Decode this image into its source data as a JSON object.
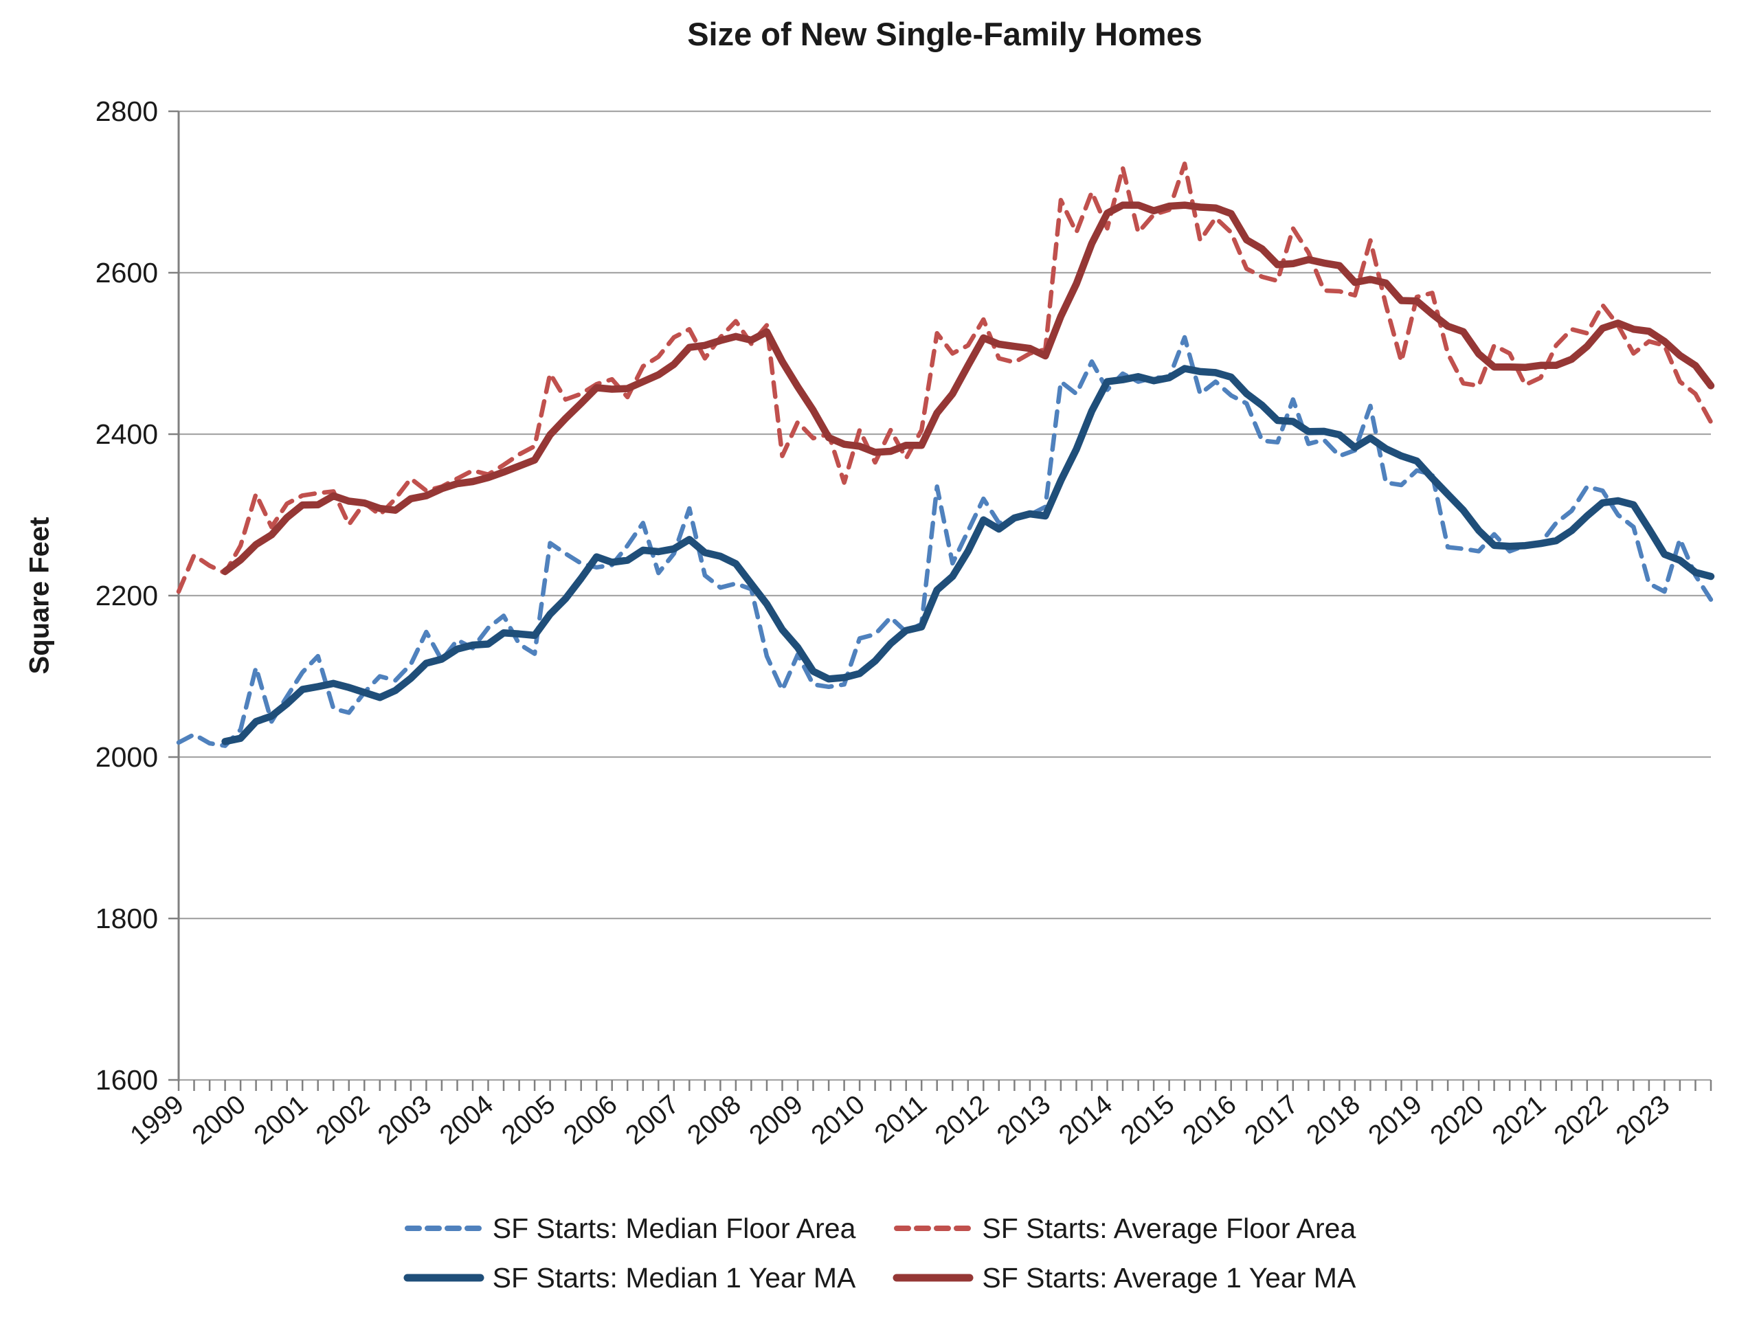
{
  "chart_data": {
    "type": "line",
    "title": "Size of New Single-Family Homes",
    "xlabel": "",
    "ylabel": "Square Feet",
    "ylim": [
      1600,
      2800
    ],
    "yticks": [
      1600,
      1800,
      2000,
      2200,
      2400,
      2600,
      2800
    ],
    "xtick_labels": [
      "1999",
      "2000",
      "2001",
      "2002",
      "2003",
      "2004",
      "2005",
      "2006",
      "2007",
      "2008",
      "2009",
      "2010",
      "2011",
      "2012",
      "2013",
      "2014",
      "2015",
      "2016",
      "2017",
      "2018",
      "2019",
      "2020",
      "2021",
      "2022",
      "2023"
    ],
    "quarters_per_year": 4,
    "grid": "horizontal",
    "legend_position": "bottom",
    "gridline_color": "#A6A6A6",
    "axis_color": "#808080",
    "text_color": "#1a1a1a",
    "series": [
      {
        "key": "median_floor_area",
        "name": "SF Starts: Median Floor Area",
        "style": "dashed",
        "color": "#4F81BD",
        "values": [
          2018,
          2028,
          2017,
          2014,
          2034,
          2111,
          2044,
          2075,
          2105,
          2125,
          2060,
          2055,
          2080,
          2100,
          2095,
          2115,
          2155,
          2120,
          2145,
          2135,
          2160,
          2175,
          2140,
          2128,
          2265,
          2252,
          2240,
          2235,
          2238,
          2262,
          2290,
          2228,
          2252,
          2308,
          2225,
          2210,
          2215,
          2208,
          2125,
          2083,
          2127,
          2090,
          2087,
          2090,
          2147,
          2152,
          2173,
          2155,
          2165,
          2335,
          2240,
          2280,
          2320,
          2290,
          2295,
          2300,
          2310,
          2465,
          2450,
          2490,
          2455,
          2475,
          2465,
          2470,
          2470,
          2520,
          2450,
          2465,
          2448,
          2438,
          2392,
          2390,
          2443,
          2388,
          2393,
          2373,
          2380,
          2435,
          2340,
          2337,
          2355,
          2350,
          2260,
          2258,
          2255,
          2276,
          2255,
          2262,
          2265,
          2290,
          2305,
          2335,
          2330,
          2300,
          2285,
          2215,
          2205,
          2270,
          2225,
          2195
        ]
      },
      {
        "key": "average_floor_area",
        "name": "SF Starts: Average Floor Area",
        "style": "dashed",
        "color": "#C0504D",
        "values": [
          2205,
          2250,
          2237,
          2228,
          2262,
          2326,
          2285,
          2314,
          2324,
          2327,
          2329,
          2288,
          2315,
          2300,
          2320,
          2345,
          2330,
          2335,
          2345,
          2355,
          2350,
          2362,
          2375,
          2385,
          2475,
          2443,
          2450,
          2462,
          2468,
          2446,
          2484,
          2496,
          2520,
          2530,
          2494,
          2520,
          2540,
          2512,
          2535,
          2373,
          2415,
          2395,
          2400,
          2340,
          2405,
          2365,
          2405,
          2370,
          2405,
          2525,
          2500,
          2510,
          2542,
          2494,
          2489,
          2500,
          2505,
          2690,
          2650,
          2700,
          2655,
          2730,
          2650,
          2672,
          2678,
          2735,
          2640,
          2668,
          2650,
          2605,
          2595,
          2590,
          2655,
          2625,
          2578,
          2577,
          2572,
          2640,
          2560,
          2490,
          2570,
          2575,
          2500,
          2463,
          2460,
          2510,
          2500,
          2461,
          2470,
          2510,
          2530,
          2525,
          2560,
          2535,
          2500,
          2515,
          2510,
          2465,
          2450,
          2415
        ]
      },
      {
        "key": "median_1yr_ma",
        "name": "SF Starts: Median 1 Year MA",
        "style": "solid",
        "color": "#1F4E79",
        "derived_from": "median_floor_area",
        "ma_window": 4
      },
      {
        "key": "average_1yr_ma",
        "name": "SF Starts: Average 1 Year MA",
        "style": "solid",
        "color": "#953735",
        "derived_from": "average_floor_area",
        "ma_window": 4
      }
    ]
  }
}
